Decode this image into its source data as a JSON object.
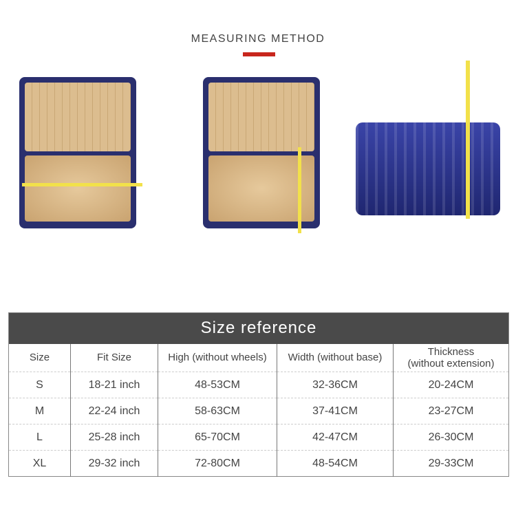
{
  "measuring_title": "MEASURING METHOD",
  "accent_color": "#c8261d",
  "table": {
    "title": "Size reference",
    "headers": [
      "Size",
      "Fit Size",
      "High (without wheels)",
      "Width (without base)",
      "Thickness\n(without extension)"
    ],
    "rows": [
      [
        "S",
        "18-21 inch",
        "48-53CM",
        "32-36CM",
        "20-24CM"
      ],
      [
        "M",
        "22-24 inch",
        "58-63CM",
        "37-41CM",
        "23-27CM"
      ],
      [
        "L",
        "25-28 inch",
        "65-70CM",
        "42-47CM",
        "26-30CM"
      ],
      [
        "XL",
        "29-32 inch",
        "72-80CM",
        "48-54CM",
        "29-33CM"
      ]
    ]
  }
}
